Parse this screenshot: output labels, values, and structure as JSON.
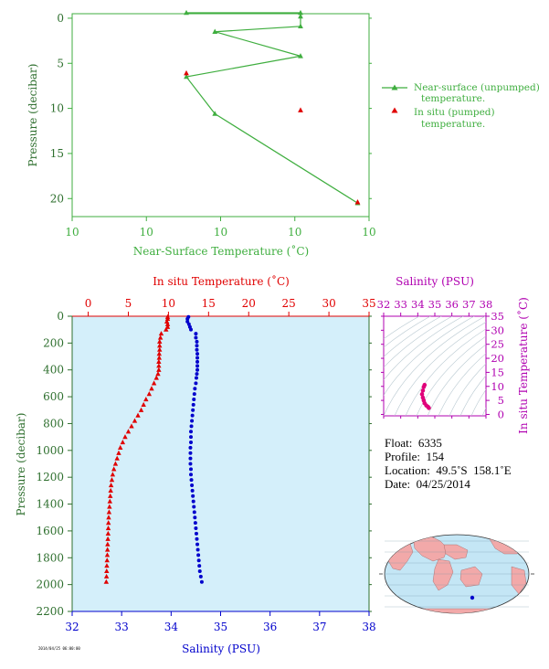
{
  "chart_data": [
    {
      "type": "line",
      "ylabel": "Pressure (decibar)",
      "xlabel": "Near-Surface Temperature (˚C)",
      "xticklabels": [
        "10",
        "10",
        "10",
        "10",
        "10"
      ],
      "yticks": [
        0,
        5,
        10,
        15,
        20
      ],
      "ylim": [
        -0.5,
        22
      ],
      "xlim": [
        9.5,
        10.02
      ],
      "grid": false,
      "legend_position": "right",
      "series": [
        {
          "name": "Near-surface (unpumped) temperature.",
          "name_lines": [
            "Near-surface (unpumped)",
            "temperature."
          ],
          "color": "#3fae3f",
          "marker": "triangle",
          "points": [
            [
              9.7,
              -0.6
            ],
            [
              9.9,
              -0.6
            ],
            [
              9.9,
              -0.2
            ],
            [
              9.9,
              0.9
            ],
            [
              9.75,
              1.5
            ],
            [
              9.9,
              4.2
            ],
            [
              9.7,
              6.5
            ],
            [
              9.75,
              10.6
            ],
            [
              10.0,
              20.5
            ]
          ]
        },
        {
          "name": "In situ (pumped) temperature.",
          "name_lines": [
            "In situ (pumped)",
            "temperature."
          ],
          "color": "#e00000",
          "marker": "triangle",
          "points": [
            [
              9.7,
              6.1
            ],
            [
              9.9,
              10.2
            ],
            [
              10.0,
              20.4
            ]
          ]
        }
      ]
    },
    {
      "type": "scatter",
      "ylabel": "Pressure (decibar)",
      "x_top_label": "In situ Temperature (˚C)",
      "x_bottom_label": "Salinity (PSU)",
      "x_top_ticks": [
        0,
        5,
        10,
        15,
        20,
        25,
        30,
        35
      ],
      "x_top_lim": [
        -2,
        35
      ],
      "x_bottom_ticks": [
        32,
        33,
        34,
        35,
        36,
        37,
        38
      ],
      "x_bottom_lim": [
        32,
        38
      ],
      "yticks": [
        0,
        200,
        400,
        600,
        800,
        1000,
        1200,
        1400,
        1600,
        1800,
        2000,
        2200
      ],
      "ylim": [
        0,
        2200
      ],
      "background": "#d4effa",
      "series": [
        {
          "name": "In situ Temperature",
          "axis": "top",
          "color": "#e00000",
          "marker": "triangle",
          "points": [
            [
              9.9,
              5
            ],
            [
              9.9,
              20
            ],
            [
              9.8,
              40
            ],
            [
              9.9,
              60
            ],
            [
              9.9,
              80
            ],
            [
              9.7,
              100
            ],
            [
              9.1,
              130
            ],
            [
              9.0,
              160
            ],
            [
              8.9,
              190
            ],
            [
              8.9,
              220
            ],
            [
              8.9,
              250
            ],
            [
              8.85,
              280
            ],
            [
              8.85,
              310
            ],
            [
              8.8,
              340
            ],
            [
              8.8,
              370
            ],
            [
              8.8,
              400
            ],
            [
              8.7,
              430
            ],
            [
              8.5,
              460
            ],
            [
              8.2,
              500
            ],
            [
              7.9,
              540
            ],
            [
              7.6,
              580
            ],
            [
              7.2,
              620
            ],
            [
              6.9,
              660
            ],
            [
              6.6,
              700
            ],
            [
              6.2,
              740
            ],
            [
              5.8,
              780
            ],
            [
              5.4,
              820
            ],
            [
              5.0,
              860
            ],
            [
              4.6,
              900
            ],
            [
              4.3,
              940
            ],
            [
              4.0,
              980
            ],
            [
              3.8,
              1020
            ],
            [
              3.6,
              1060
            ],
            [
              3.4,
              1100
            ],
            [
              3.2,
              1140
            ],
            [
              3.05,
              1180
            ],
            [
              2.95,
              1220
            ],
            [
              2.85,
              1260
            ],
            [
              2.8,
              1300
            ],
            [
              2.75,
              1340
            ],
            [
              2.7,
              1380
            ],
            [
              2.65,
              1420
            ],
            [
              2.6,
              1460
            ],
            [
              2.55,
              1500
            ],
            [
              2.52,
              1540
            ],
            [
              2.5,
              1580
            ],
            [
              2.48,
              1620
            ],
            [
              2.45,
              1660
            ],
            [
              2.42,
              1700
            ],
            [
              2.4,
              1740
            ],
            [
              2.38,
              1780
            ],
            [
              2.35,
              1820
            ],
            [
              2.32,
              1860
            ],
            [
              2.3,
              1900
            ],
            [
              2.28,
              1940
            ],
            [
              2.25,
              1980
            ]
          ]
        },
        {
          "name": "Salinity",
          "axis": "bottom",
          "color": "#0000cc",
          "marker": "dot",
          "points": [
            [
              34.35,
              5
            ],
            [
              34.33,
              20
            ],
            [
              34.33,
              40
            ],
            [
              34.36,
              60
            ],
            [
              34.38,
              80
            ],
            [
              34.4,
              100
            ],
            [
              34.5,
              130
            ],
            [
              34.5,
              160
            ],
            [
              34.52,
              190
            ],
            [
              34.52,
              220
            ],
            [
              34.52,
              250
            ],
            [
              34.53,
              280
            ],
            [
              34.53,
              310
            ],
            [
              34.53,
              340
            ],
            [
              34.53,
              370
            ],
            [
              34.53,
              400
            ],
            [
              34.52,
              430
            ],
            [
              34.51,
              460
            ],
            [
              34.5,
              500
            ],
            [
              34.48,
              540
            ],
            [
              34.47,
              580
            ],
            [
              34.46,
              620
            ],
            [
              34.45,
              660
            ],
            [
              34.44,
              700
            ],
            [
              34.43,
              740
            ],
            [
              34.42,
              780
            ],
            [
              34.41,
              820
            ],
            [
              34.4,
              860
            ],
            [
              34.4,
              900
            ],
            [
              34.4,
              940
            ],
            [
              34.39,
              980
            ],
            [
              34.39,
              1020
            ],
            [
              34.39,
              1060
            ],
            [
              34.39,
              1100
            ],
            [
              34.4,
              1140
            ],
            [
              34.4,
              1180
            ],
            [
              34.41,
              1220
            ],
            [
              34.42,
              1260
            ],
            [
              34.43,
              1300
            ],
            [
              34.44,
              1340
            ],
            [
              34.45,
              1380
            ],
            [
              34.46,
              1420
            ],
            [
              34.47,
              1460
            ],
            [
              34.48,
              1500
            ],
            [
              34.49,
              1540
            ],
            [
              34.5,
              1580
            ],
            [
              34.51,
              1620
            ],
            [
              34.52,
              1660
            ],
            [
              34.53,
              1700
            ],
            [
              34.54,
              1740
            ],
            [
              34.55,
              1780
            ],
            [
              34.56,
              1820
            ],
            [
              34.57,
              1860
            ],
            [
              34.58,
              1900
            ],
            [
              34.6,
              1940
            ],
            [
              34.62,
              1980
            ]
          ]
        }
      ]
    },
    {
      "type": "scatter",
      "title": "Salinity (PSU)",
      "ylabel": "In situ Temperature (˚C)",
      "x_ticks": [
        32,
        33,
        34,
        35,
        36,
        37,
        38
      ],
      "x_lim": [
        32,
        38
      ],
      "y_ticks": [
        0,
        5,
        10,
        15,
        20,
        25,
        30,
        35
      ],
      "y_lim": [
        -0.5,
        35
      ],
      "color": "#e0007a",
      "points": [
        [
          34.4,
          10.5
        ],
        [
          34.35,
          9.8
        ],
        [
          34.3,
          8.5
        ],
        [
          34.25,
          7.2
        ],
        [
          34.3,
          6.0
        ],
        [
          34.35,
          5.0
        ],
        [
          34.4,
          4.0
        ],
        [
          34.5,
          3.2
        ],
        [
          34.6,
          2.7
        ],
        [
          34.65,
          2.3
        ]
      ]
    }
  ],
  "float_info": {
    "float_label": "Float:",
    "float_value": "6335",
    "profile_label": "Profile:",
    "profile_value": "154",
    "location_label": "Location:",
    "location_value": "49.5˚S  158.1˚E",
    "date_label": "Date:",
    "date_value": "04/25/2014"
  },
  "map": {
    "ocean_color": "#c4e6f5",
    "land_color": "#f2a9a9",
    "marker_color": "#0000cc"
  },
  "footnote": "2014/04/25 06:00:00"
}
